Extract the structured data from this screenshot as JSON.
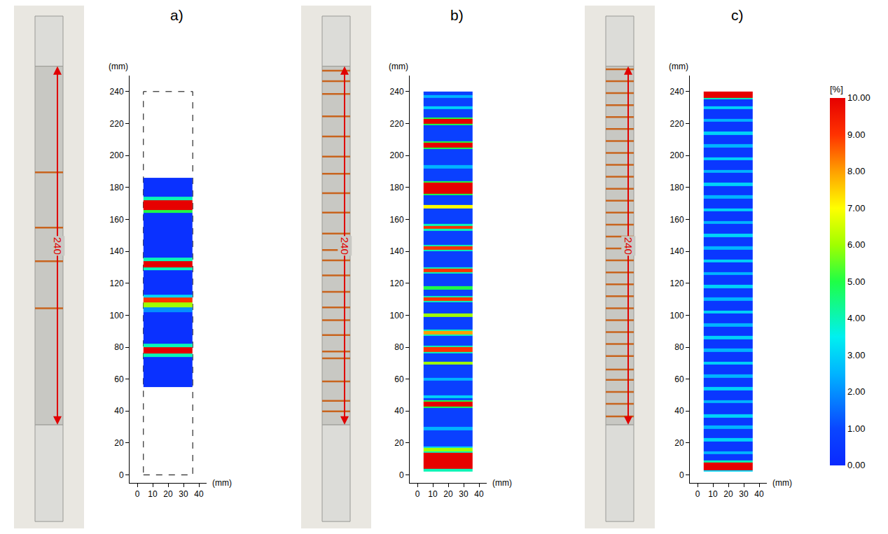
{
  "chart_data": [
    {
      "type": "heatmap",
      "title": "a)",
      "xlabel": "(mm)",
      "ylabel": "(mm)",
      "xlim": [
        -5,
        45
      ],
      "ylim": [
        -5,
        250
      ],
      "xticks": [
        0,
        10,
        20,
        30,
        40
      ],
      "yticks": [
        0,
        20,
        40,
        60,
        80,
        100,
        120,
        140,
        160,
        180,
        200,
        220,
        240
      ],
      "gauge_length": 240,
      "outline_x": [
        4,
        36
      ],
      "outline_y": [
        0,
        240
      ],
      "x_edges": [
        4,
        36
      ],
      "y_edges": [
        55,
        74,
        76,
        80,
        82,
        102,
        105,
        108,
        111,
        113,
        128,
        130,
        134,
        136,
        164,
        166,
        172,
        174,
        186
      ],
      "z": [
        0.3,
        4,
        10,
        4,
        0.3,
        2,
        6,
        9,
        3,
        0.3,
        4,
        10,
        4,
        0.3,
        5,
        10,
        4,
        0.3
      ]
    },
    {
      "type": "heatmap",
      "title": "b)",
      "xlabel": "(mm)",
      "ylabel": "(mm)",
      "xlim": [
        -5,
        45
      ],
      "ylim": [
        -5,
        250
      ],
      "xticks": [
        0,
        10,
        20,
        30,
        40
      ],
      "yticks": [
        0,
        20,
        40,
        60,
        80,
        100,
        120,
        140,
        160,
        180,
        200,
        220,
        240
      ],
      "gauge_length": 240,
      "x_edges": [
        4,
        36
      ],
      "y_edges": [
        2,
        4,
        14,
        15,
        17,
        18,
        28,
        30,
        42,
        43,
        46,
        47,
        48,
        50,
        59,
        61,
        69,
        71,
        76,
        77,
        80,
        81,
        87,
        88,
        90,
        91,
        99,
        101,
        108,
        109,
        111,
        112,
        116,
        118,
        126,
        127,
        129,
        130,
        140,
        141,
        143,
        144,
        153,
        154,
        156,
        157,
        167,
        169,
        175,
        176,
        183,
        184,
        192,
        194,
        204,
        205,
        208,
        209,
        219,
        220,
        223,
        224,
        229,
        231,
        236,
        238,
        240
      ],
      "z": [
        4,
        10,
        4,
        6,
        3,
        0.8,
        2.5,
        0.8,
        5,
        10,
        5,
        0.8,
        3,
        0.8,
        2.5,
        0.8,
        6,
        0.8,
        4,
        9,
        4,
        0.8,
        4,
        8,
        4,
        0.8,
        6,
        0.8,
        4,
        9,
        4,
        0.8,
        5,
        0.8,
        4,
        9,
        4,
        0.8,
        4,
        9,
        4,
        0.8,
        4,
        9,
        4,
        0.8,
        7,
        0.8,
        5,
        10,
        5,
        0.8,
        2.5,
        0.8,
        5,
        10,
        5,
        0.8,
        5,
        10,
        5,
        0.8,
        3,
        0.8,
        2.5,
        0.8
      ]
    },
    {
      "type": "heatmap",
      "title": "c)",
      "xlabel": "(mm)",
      "ylabel": "(mm)",
      "xlim": [
        -5,
        45
      ],
      "ylim": [
        -5,
        250
      ],
      "xticks": [
        0,
        10,
        20,
        30,
        40
      ],
      "yticks": [
        0,
        20,
        40,
        60,
        80,
        100,
        120,
        140,
        160,
        180,
        200,
        220,
        240
      ],
      "gauge_length": 240,
      "x_edges": [
        4,
        36
      ],
      "y_edges": [
        2,
        3,
        8,
        9,
        13,
        15,
        21,
        23,
        29,
        31,
        36,
        38,
        45,
        47,
        53,
        55,
        61,
        63,
        69,
        71,
        77,
        79,
        85,
        87,
        93,
        95,
        101,
        103,
        109,
        111,
        117,
        119,
        125,
        127,
        133,
        135,
        141,
        143,
        149,
        151,
        157,
        159,
        165,
        167,
        173,
        175,
        181,
        183,
        189,
        191,
        197,
        199,
        205,
        207,
        213,
        215,
        221,
        223,
        229,
        231,
        235,
        236,
        240
      ],
      "z": [
        3,
        10,
        4,
        0.5,
        2.5,
        0.5,
        3,
        0.5,
        2.5,
        0.5,
        3,
        0.5,
        2.5,
        0.5,
        3,
        0.5,
        2.5,
        0.5,
        3,
        0.5,
        2.5,
        0.5,
        3,
        0.5,
        2.5,
        0.5,
        3,
        0.5,
        2.5,
        0.5,
        3,
        0.5,
        2.5,
        0.5,
        3,
        0.5,
        2.5,
        0.5,
        3,
        0.5,
        2.5,
        0.5,
        3,
        0.5,
        2.5,
        0.5,
        3,
        0.5,
        2.5,
        0.5,
        3,
        0.5,
        2.5,
        0.5,
        3,
        0.5,
        2.5,
        0.5,
        3,
        0.5,
        4,
        10
      ],
      "colorbar": {
        "title": "[%]",
        "range": [
          0,
          10
        ],
        "ticks": [
          {
            "value": 0,
            "label": "0.00"
          },
          {
            "value": 1,
            "label": "1.00"
          },
          {
            "value": 2,
            "label": "2.00"
          },
          {
            "value": 3,
            "label": "3.00"
          },
          {
            "value": 4,
            "label": "4.00"
          },
          {
            "value": 5,
            "label": "5.00"
          },
          {
            "value": 6,
            "label": "6.00"
          },
          {
            "value": 7,
            "label": "7.00"
          },
          {
            "value": 8,
            "label": "8.00"
          },
          {
            "value": 9,
            "label": "9.00"
          },
          {
            "value": 10,
            "label": "10.00"
          }
        ]
      }
    }
  ]
}
